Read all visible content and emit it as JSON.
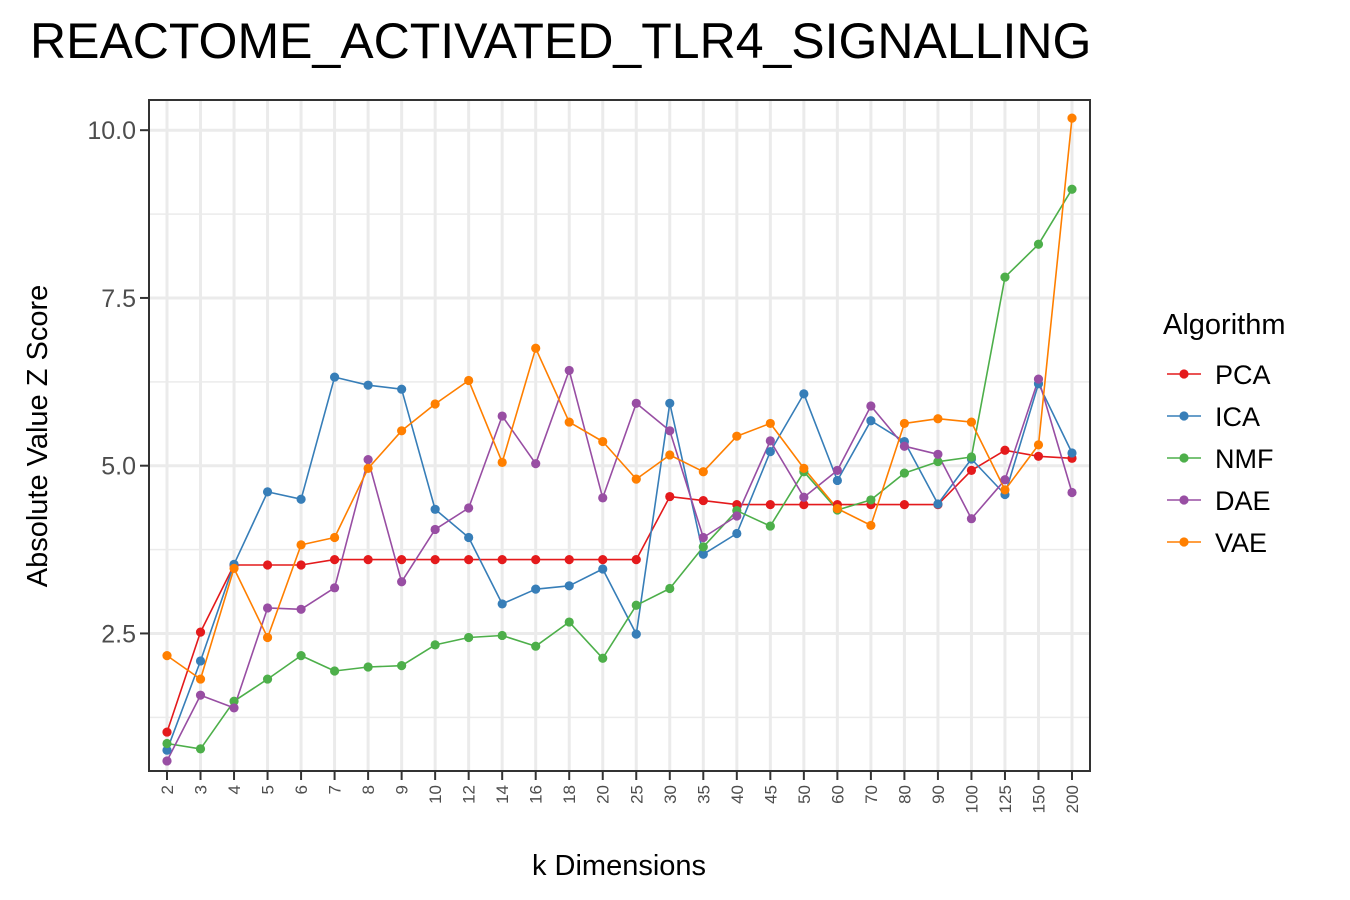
{
  "chart_data": {
    "type": "line",
    "title": "REACTOME_ACTIVATED_TLR4_SIGNALLING",
    "xlabel": "k Dimensions",
    "ylabel": "Absolute Value Z Score",
    "categories": [
      "2",
      "3",
      "4",
      "5",
      "6",
      "7",
      "8",
      "9",
      "10",
      "12",
      "14",
      "16",
      "18",
      "20",
      "25",
      "30",
      "35",
      "40",
      "45",
      "50",
      "60",
      "70",
      "80",
      "90",
      "100",
      "125",
      "150",
      "200"
    ],
    "ylim": [
      0.45,
      10.45
    ],
    "yticks": [
      2.5,
      5.0,
      7.5,
      10.0
    ],
    "ytick_labels": [
      "2.5",
      "5.0",
      "7.5",
      "10.0"
    ],
    "grid": true,
    "legend": {
      "title": "Algorithm",
      "position": "right"
    },
    "series": [
      {
        "name": "PCA",
        "color": "#E41A1C",
        "values": [
          1.03,
          2.52,
          3.52,
          3.52,
          3.52,
          3.6,
          3.6,
          3.6,
          3.6,
          3.6,
          3.6,
          3.6,
          3.6,
          3.6,
          3.6,
          4.54,
          4.48,
          4.42,
          4.42,
          4.42,
          4.42,
          4.42,
          4.42,
          4.42,
          4.93,
          5.23,
          5.14,
          5.11
        ]
      },
      {
        "name": "ICA",
        "color": "#377EB8",
        "values": [
          0.76,
          2.09,
          3.53,
          4.61,
          4.5,
          6.32,
          6.2,
          6.14,
          4.35,
          3.93,
          2.94,
          3.16,
          3.21,
          3.46,
          2.49,
          5.93,
          3.68,
          3.99,
          5.21,
          6.07,
          4.78,
          5.67,
          5.36,
          4.43,
          5.1,
          4.57,
          6.22,
          5.19
        ]
      },
      {
        "name": "NMF",
        "color": "#4DAF4A",
        "values": [
          0.86,
          0.78,
          1.49,
          1.82,
          2.17,
          1.94,
          2.0,
          2.02,
          2.33,
          2.44,
          2.47,
          2.31,
          2.67,
          2.13,
          2.92,
          3.17,
          3.79,
          4.33,
          4.1,
          4.91,
          4.34,
          4.49,
          4.89,
          5.06,
          5.13,
          7.81,
          8.3,
          9.12
        ]
      },
      {
        "name": "DAE",
        "color": "#984EA3",
        "values": [
          0.6,
          1.58,
          1.39,
          2.88,
          2.86,
          3.18,
          5.09,
          3.27,
          4.05,
          4.37,
          5.74,
          5.03,
          6.42,
          4.52,
          5.93,
          5.52,
          3.93,
          4.25,
          5.37,
          4.53,
          4.93,
          5.89,
          5.29,
          5.17,
          4.21,
          4.79,
          6.29,
          4.6
        ]
      },
      {
        "name": "VAE",
        "color": "#FF7F00",
        "values": [
          2.17,
          1.82,
          3.47,
          2.44,
          3.82,
          3.93,
          4.96,
          5.52,
          5.92,
          6.27,
          5.05,
          6.75,
          5.65,
          5.36,
          4.8,
          5.16,
          4.91,
          5.44,
          5.63,
          4.96,
          4.36,
          4.11,
          5.63,
          5.7,
          5.65,
          4.64,
          5.31,
          10.18
        ]
      }
    ]
  }
}
